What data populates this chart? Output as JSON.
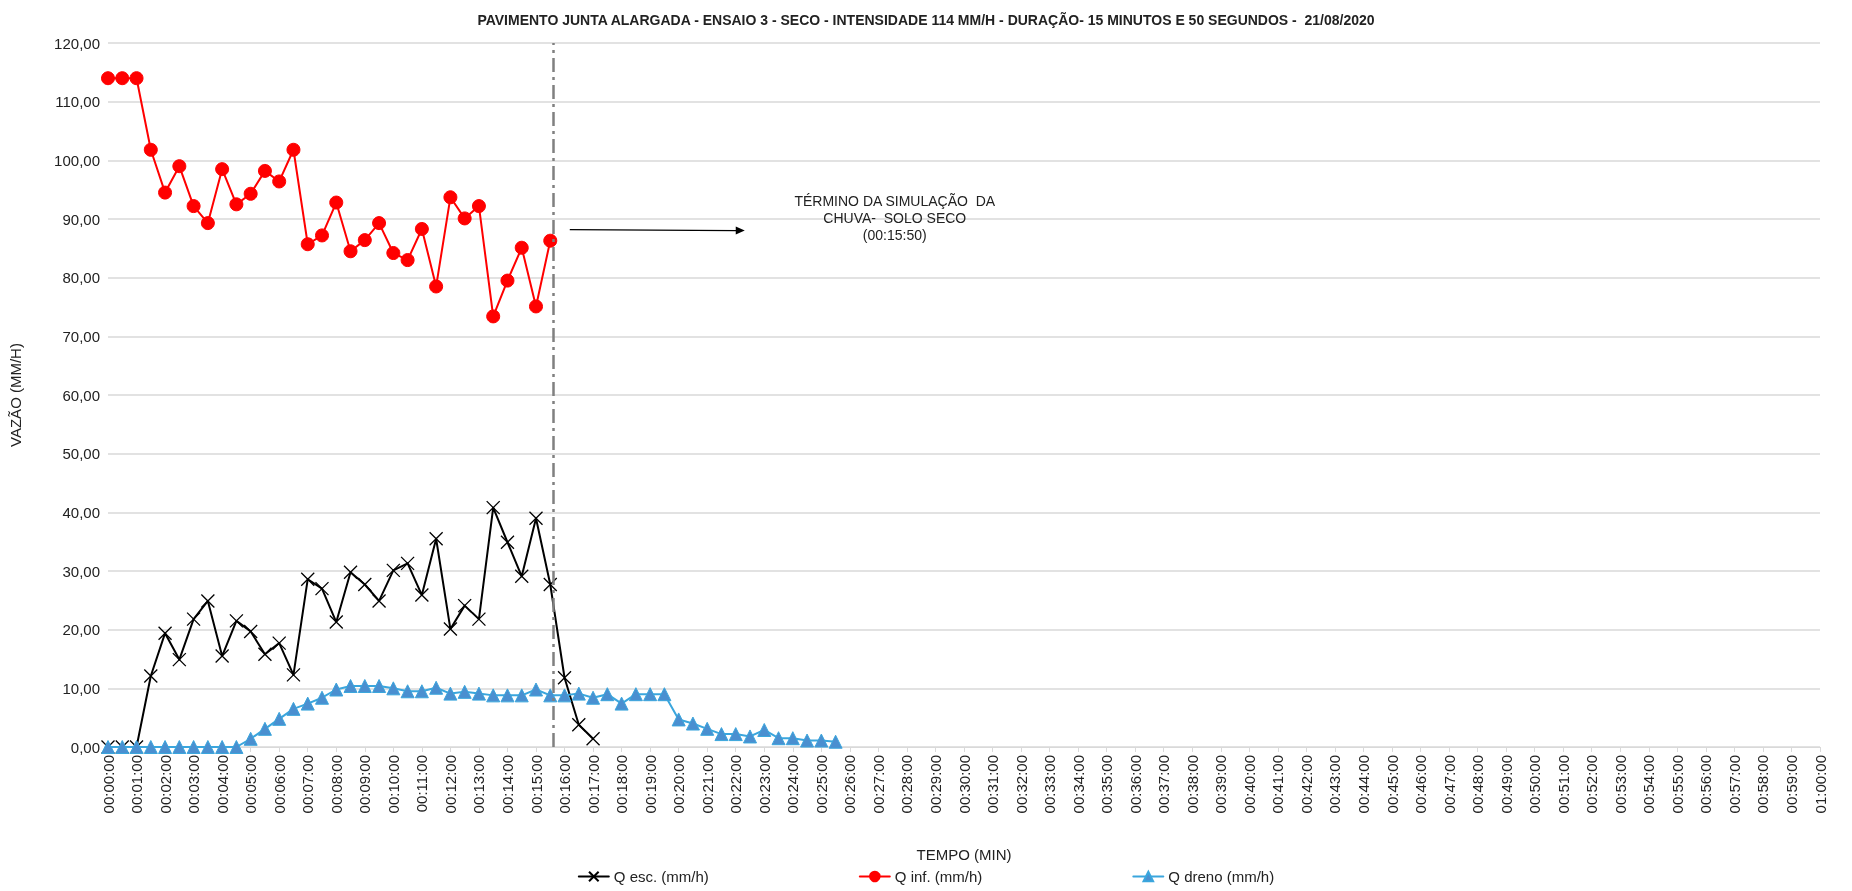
{
  "chart_data": {
    "type": "line",
    "title": "PAVIMENTO JUNTA ALARGADA - ENSAIO 3 - SECO - INTENSIDADE 114 MM/H - DURAÇÃO- 15 MINUTOS E 50 SEGUNDOS -  21/08/2020",
    "xlabel": "TEMPO (MIN)",
    "ylabel": "VAZÃO (MM/H)",
    "series": [
      {
        "name": "Q esc. (mm/h)",
        "color": "#000000",
        "marker": "cross",
        "x": [
          0,
          0.008333,
          0.016667,
          0.025,
          0.033333,
          0.041667,
          0.05,
          0.058333,
          0.066667,
          0.075,
          0.083333,
          0.091667,
          0.1,
          0.108333,
          0.116667,
          0.125,
          0.133333,
          0.141667,
          0.15,
          0.158333,
          0.166667,
          0.175,
          0.183333,
          0.191667,
          0.2,
          0.208333,
          0.216667,
          0.225,
          0.233333,
          0.241667,
          0.25,
          0.258333,
          0.266667,
          0.275,
          0.283333
        ],
        "values": [
          0,
          0,
          0,
          12.1,
          19.4,
          14.9,
          21.8,
          24.9,
          15.5,
          21.5,
          19.7,
          15.8,
          17.7,
          12.3,
          28.6,
          27.0,
          21.3,
          29.8,
          27.7,
          24.9,
          30.1,
          31.3,
          25.9,
          35.5,
          20.1,
          24.1,
          21.8,
          40.8,
          34.9,
          29.1,
          39.0,
          27.7,
          11.8,
          3.8,
          1.4
        ]
      },
      {
        "name": "Q inf. (mm/h)",
        "color": "#ff0000",
        "marker": "circle",
        "x": [
          0,
          0.008333,
          0.016667,
          0.025,
          0.033333,
          0.041667,
          0.05,
          0.058333,
          0.066667,
          0.075,
          0.083333,
          0.091667,
          0.1,
          0.108333,
          0.116667,
          0.125,
          0.133333,
          0.141667,
          0.15,
          0.158333,
          0.166667,
          0.175,
          0.183333,
          0.191667,
          0.2,
          0.208333,
          0.216667,
          0.225,
          0.233333,
          0.241667,
          0.25,
          0.258333
        ],
        "values": [
          114,
          114,
          114,
          101.8,
          94.5,
          99.0,
          92.2,
          89.3,
          98.5,
          92.5,
          94.3,
          98.2,
          96.4,
          101.8,
          85.7,
          87.2,
          92.8,
          84.5,
          86.4,
          89.3,
          84.2,
          83.0,
          88.3,
          78.5,
          93.7,
          90.1,
          92.2,
          73.4,
          79.5,
          85.1,
          75.1,
          86.3
        ]
      },
      {
        "name": "Q dreno (mm/h)",
        "color": "#3aa6dd",
        "marker": "triangle",
        "x": [
          0,
          0.008333,
          0.016667,
          0.025,
          0.033333,
          0.041667,
          0.05,
          0.058333,
          0.066667,
          0.075,
          0.083333,
          0.091667,
          0.1,
          0.108333,
          0.116667,
          0.125,
          0.133333,
          0.141667,
          0.15,
          0.158333,
          0.166667,
          0.175,
          0.183333,
          0.191667,
          0.2,
          0.208333,
          0.216667,
          0.225,
          0.233333,
          0.241667,
          0.25,
          0.258333,
          0.266667,
          0.275,
          0.283333,
          0.291667,
          0.3,
          0.308333,
          0.316667,
          0.325,
          0.333333,
          0.341667,
          0.35,
          0.358333,
          0.366667,
          0.375,
          0.383333,
          0.391667,
          0.4,
          0.408333,
          0.416667,
          0.425
        ],
        "values": [
          0,
          0,
          0,
          0,
          0,
          0,
          0,
          0,
          0,
          0,
          1.4,
          3.1,
          4.8,
          6.5,
          7.4,
          8.4,
          9.8,
          10.4,
          10.4,
          10.4,
          10.0,
          9.5,
          9.5,
          10.1,
          9.1,
          9.4,
          9.1,
          8.8,
          8.8,
          8.8,
          9.8,
          8.8,
          8.8,
          9.1,
          8.4,
          9.0,
          7.4,
          9.0,
          9.0,
          9.0,
          4.7,
          4.0,
          3.1,
          2.2,
          2.2,
          1.8,
          2.9,
          1.5,
          1.5,
          1.1,
          1.1,
          0.9
        ]
      }
    ],
    "xlim": [
      0,
      1
    ],
    "xticks": [
      {
        "value": 0,
        "label": "00:00:00"
      },
      {
        "value": 0.016667,
        "label": "00:01:00"
      },
      {
        "value": 0.033333,
        "label": "00:02:00"
      },
      {
        "value": 0.05,
        "label": "00:03:00"
      },
      {
        "value": 0.066667,
        "label": "00:04:00"
      },
      {
        "value": 0.083333,
        "label": "00:05:00"
      },
      {
        "value": 0.1,
        "label": "00:06:00"
      },
      {
        "value": 0.116667,
        "label": "00:07:00"
      },
      {
        "value": 0.133333,
        "label": "00:08:00"
      },
      {
        "value": 0.15,
        "label": "00:09:00"
      },
      {
        "value": 0.166667,
        "label": "00:10:00"
      },
      {
        "value": 0.183333,
        "label": "00:11:00"
      },
      {
        "value": 0.2,
        "label": "00:12:00"
      },
      {
        "value": 0.216667,
        "label": "00:13:00"
      },
      {
        "value": 0.233333,
        "label": "00:14:00"
      },
      {
        "value": 0.25,
        "label": "00:15:00"
      },
      {
        "value": 0.266667,
        "label": "00:16:00"
      },
      {
        "value": 0.283333,
        "label": "00:17:00"
      },
      {
        "value": 0.3,
        "label": "00:18:00"
      },
      {
        "value": 0.316667,
        "label": "00:19:00"
      },
      {
        "value": 0.333333,
        "label": "00:20:00"
      },
      {
        "value": 0.35,
        "label": "00:21:00"
      },
      {
        "value": 0.366667,
        "label": "00:22:00"
      },
      {
        "value": 0.383333,
        "label": "00:23:00"
      },
      {
        "value": 0.4,
        "label": "00:24:00"
      },
      {
        "value": 0.416667,
        "label": "00:25:00"
      },
      {
        "value": 0.433333,
        "label": "00:26:00"
      },
      {
        "value": 0.45,
        "label": "00:27:00"
      },
      {
        "value": 0.466667,
        "label": "00:28:00"
      },
      {
        "value": 0.483333,
        "label": "00:29:00"
      },
      {
        "value": 0.5,
        "label": "00:30:00"
      },
      {
        "value": 0.516667,
        "label": "00:31:00"
      },
      {
        "value": 0.533333,
        "label": "00:32:00"
      },
      {
        "value": 0.55,
        "label": "00:33:00"
      },
      {
        "value": 0.566667,
        "label": "00:34:00"
      },
      {
        "value": 0.583333,
        "label": "00:35:00"
      },
      {
        "value": 0.6,
        "label": "00:36:00"
      },
      {
        "value": 0.616667,
        "label": "00:37:00"
      },
      {
        "value": 0.633333,
        "label": "00:38:00"
      },
      {
        "value": 0.65,
        "label": "00:39:00"
      },
      {
        "value": 0.666667,
        "label": "00:40:00"
      },
      {
        "value": 0.683333,
        "label": "00:41:00"
      },
      {
        "value": 0.7,
        "label": "00:42:00"
      },
      {
        "value": 0.716667,
        "label": "00:43:00"
      },
      {
        "value": 0.733333,
        "label": "00:44:00"
      },
      {
        "value": 0.75,
        "label": "00:45:00"
      },
      {
        "value": 0.766667,
        "label": "00:46:00"
      },
      {
        "value": 0.783333,
        "label": "00:47:00"
      },
      {
        "value": 0.8,
        "label": "00:48:00"
      },
      {
        "value": 0.816667,
        "label": "00:49:00"
      },
      {
        "value": 0.833333,
        "label": "00:50:00"
      },
      {
        "value": 0.85,
        "label": "00:51:00"
      },
      {
        "value": 0.866667,
        "label": "00:52:00"
      },
      {
        "value": 0.883333,
        "label": "00:53:00"
      },
      {
        "value": 0.9,
        "label": "00:54:00"
      },
      {
        "value": 0.916667,
        "label": "00:55:00"
      },
      {
        "value": 0.933333,
        "label": "00:56:00"
      },
      {
        "value": 0.95,
        "label": "00:57:00"
      },
      {
        "value": 0.966667,
        "label": "00:58:00"
      },
      {
        "value": 0.983333,
        "label": "00:59:00"
      },
      {
        "value": 1,
        "label": "01:00:00"
      }
    ],
    "ylim": [
      0,
      120
    ],
    "yticks": [
      {
        "value": 0,
        "label": "0,00"
      },
      {
        "value": 10,
        "label": "10,00"
      },
      {
        "value": 20,
        "label": "20,00"
      },
      {
        "value": 30,
        "label": "30,00"
      },
      {
        "value": 40,
        "label": "40,00"
      },
      {
        "value": 50,
        "label": "50,00"
      },
      {
        "value": 60,
        "label": "60,00"
      },
      {
        "value": 70,
        "label": "70,00"
      },
      {
        "value": 80,
        "label": "80,00"
      },
      {
        "value": 90,
        "label": "90,00"
      },
      {
        "value": 100,
        "label": "100,00"
      },
      {
        "value": 110,
        "label": "110,00"
      },
      {
        "value": 120,
        "label": "120,00"
      }
    ],
    "ref_lines": [
      {
        "axis": "x",
        "value": 0.263889,
        "color": "#808080",
        "line_style": "dashed"
      }
    ],
    "annotations": [
      "TÉRMINO DA SIMULAÇÃO  DA\nCHUVA-  SOLO SECO\n(00:15:50)"
    ],
    "grid": "y",
    "legend": "bottom",
    "line_style": "solid"
  }
}
